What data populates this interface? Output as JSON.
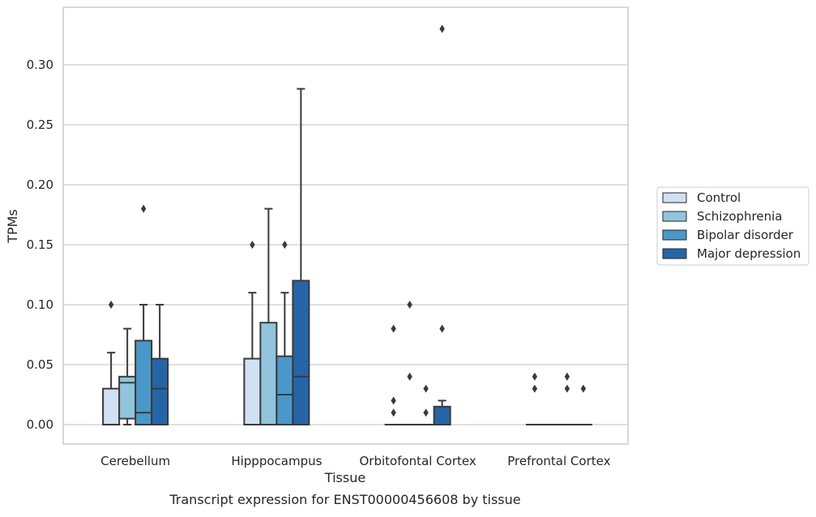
{
  "chart_data": {
    "type": "box",
    "xlabel": "Tissue",
    "ylabel": "TPMs",
    "caption": "Transcript expression for ENST00000456608 by tissue",
    "ylim": [
      -0.016,
      0.345
    ],
    "yticks": [
      "0.00",
      "0.05",
      "0.10",
      "0.15",
      "0.20",
      "0.25",
      "0.30"
    ],
    "ytick_values": [
      0,
      0.05,
      0.1,
      0.15,
      0.2,
      0.25,
      0.3
    ],
    "grid": "horizontal",
    "legend_position": "right",
    "categories": [
      "Cerebellum",
      "Hipppocampus",
      "Orbitofontal Cortex",
      "Prefrontal Cortex"
    ],
    "series": [
      {
        "name": "Control",
        "color": "#cfe1f2",
        "boxes": [
          {
            "whislo": 0,
            "q1": 0,
            "med": 0,
            "q3": 0.03,
            "whishi": 0.06,
            "fliers": [
              0.1
            ]
          },
          {
            "whislo": 0,
            "q1": 0,
            "med": 0,
            "q3": 0.055,
            "whishi": 0.11,
            "fliers": [
              0.15
            ]
          },
          {
            "whislo": 0,
            "q1": 0,
            "med": 0,
            "q3": 0,
            "whishi": 0,
            "fliers": [
              0.08,
              0.02,
              0.01
            ]
          },
          {
            "whislo": 0,
            "q1": 0,
            "med": 0,
            "q3": 0,
            "whishi": 0,
            "fliers": [
              0.04,
              0.03
            ]
          }
        ]
      },
      {
        "name": "Schizophrenia",
        "color": "#93c4de",
        "boxes": [
          {
            "whislo": 0,
            "q1": 0.005,
            "med": 0.035,
            "q3": 0.04,
            "whishi": 0.08,
            "fliers": []
          },
          {
            "whislo": 0,
            "q1": 0,
            "med": 0,
            "q3": 0.085,
            "whishi": 0.18,
            "fliers": []
          },
          {
            "whislo": 0,
            "q1": 0,
            "med": 0,
            "q3": 0,
            "whishi": 0,
            "fliers": [
              0.1,
              0.04
            ]
          },
          {
            "whislo": 0,
            "q1": 0,
            "med": 0,
            "q3": 0,
            "whishi": 0,
            "fliers": []
          }
        ]
      },
      {
        "name": "Bipolar disorder",
        "color": "#4a98c9",
        "boxes": [
          {
            "whislo": 0,
            "q1": 0,
            "med": 0.01,
            "q3": 0.07,
            "whishi": 0.1,
            "fliers": [
              0.18
            ]
          },
          {
            "whislo": 0,
            "q1": 0,
            "med": 0.025,
            "q3": 0.057,
            "whishi": 0.11,
            "fliers": [
              0.15
            ]
          },
          {
            "whislo": 0,
            "q1": 0,
            "med": 0,
            "q3": 0,
            "whishi": 0,
            "fliers": [
              0.03,
              0.01
            ]
          },
          {
            "whislo": 0,
            "q1": 0,
            "med": 0,
            "q3": 0,
            "whishi": 0,
            "fliers": [
              0.04,
              0.03
            ]
          }
        ]
      },
      {
        "name": "Major depression",
        "color": "#2565a7",
        "boxes": [
          {
            "whislo": 0,
            "q1": 0,
            "med": 0.03,
            "q3": 0.055,
            "whishi": 0.1,
            "fliers": []
          },
          {
            "whislo": 0,
            "q1": 0,
            "med": 0.04,
            "q3": 0.12,
            "whishi": 0.28,
            "fliers": []
          },
          {
            "whislo": 0,
            "q1": 0,
            "med": 0,
            "q3": 0.015,
            "whishi": 0.02,
            "fliers": [
              0.33,
              0.08
            ]
          },
          {
            "whislo": 0,
            "q1": 0,
            "med": 0,
            "q3": 0,
            "whishi": 0,
            "fliers": [
              0.03
            ]
          }
        ]
      }
    ],
    "colors": {
      "grid": "#cccccc",
      "frame": "#cccccc",
      "edge": "#3a3a3a",
      "text": "#262626"
    }
  }
}
